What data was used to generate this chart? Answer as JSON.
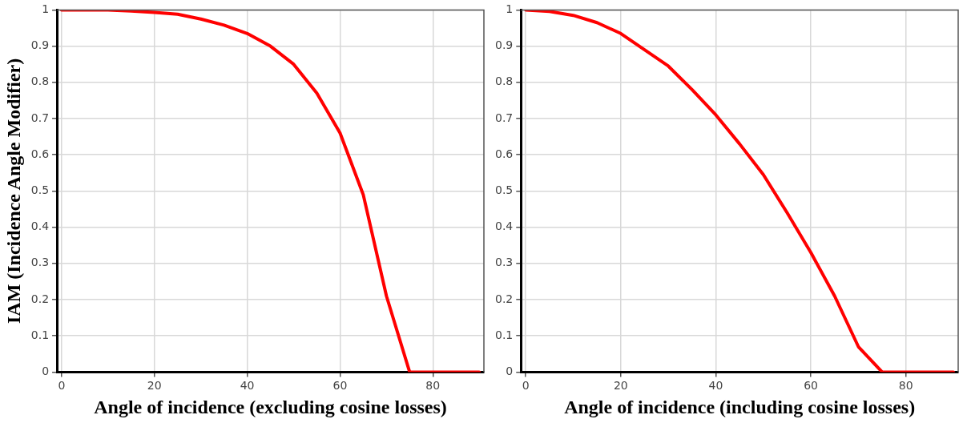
{
  "chart_data": [
    {
      "type": "line",
      "xlabel": "Angle of incidence (excluding cosine losses)",
      "ylabel": "IAM (Incidence Angle Modifier)",
      "x": [
        0,
        5,
        10,
        15,
        20,
        25,
        30,
        35,
        40,
        45,
        50,
        55,
        60,
        65,
        70,
        75,
        80,
        85,
        90
      ],
      "series": [
        {
          "color": "#ff0000",
          "values": [
            1,
            1,
            1,
            0.997,
            0.993,
            0.988,
            0.975,
            0.958,
            0.935,
            0.9,
            0.85,
            0.77,
            0.66,
            0.49,
            0.21,
            0,
            0,
            0,
            0
          ]
        }
      ],
      "xlim": [
        -1,
        91
      ],
      "xticks": [
        0,
        20,
        40,
        60,
        80
      ],
      "ylim": [
        0,
        1
      ],
      "yticks": [
        0,
        0.1,
        0.2,
        0.3,
        0.4,
        0.5,
        0.6,
        0.7,
        0.8,
        0.9,
        1
      ],
      "grid": true,
      "legend": false,
      "marker": "none",
      "line_style": "solid"
    },
    {
      "type": "line",
      "xlabel": "Angle of incidence (including cosine losses)",
      "x": [
        0,
        5,
        10,
        15,
        20,
        25,
        30,
        35,
        40,
        45,
        50,
        55,
        60,
        65,
        70,
        75,
        80,
        85,
        90
      ],
      "series": [
        {
          "color": "#ff0000",
          "values": [
            1,
            0.996,
            0.985,
            0.965,
            0.935,
            0.89,
            0.845,
            0.78,
            0.71,
            0.63,
            0.545,
            0.44,
            0.33,
            0.21,
            0.07,
            0,
            0,
            0,
            0
          ]
        }
      ],
      "xlim": [
        -1,
        91
      ],
      "xticks": [
        0,
        20,
        40,
        60,
        80
      ],
      "ylim": [
        0,
        1
      ],
      "yticks": [
        0,
        0.1,
        0.2,
        0.3,
        0.4,
        0.5,
        0.6,
        0.7,
        0.8,
        0.9,
        1
      ],
      "grid": true,
      "legend": false,
      "marker": "none",
      "line_style": "solid"
    }
  ]
}
